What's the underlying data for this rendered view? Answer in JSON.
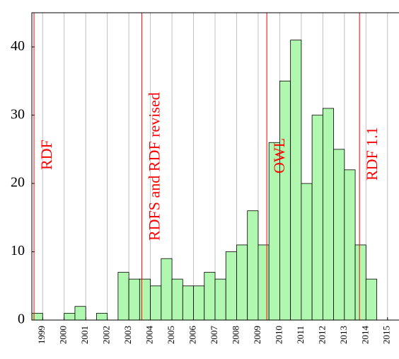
{
  "chart_data": {
    "type": "histogram",
    "bins": [
      1998.5,
      1999,
      1999.5,
      2000,
      2000.5,
      2001,
      2001.5,
      2002,
      2002.5,
      2003,
      2003.5,
      2004,
      2004.5,
      2005,
      2005.5,
      2006,
      2006.5,
      2007,
      2007.5,
      2008,
      2008.5,
      2009,
      2009.5,
      2010,
      2010.5,
      2011,
      2011.5,
      2012,
      2012.5,
      2013,
      2013.5,
      2014,
      2014.5
    ],
    "counts": [
      1,
      0,
      0,
      1,
      2,
      0,
      1,
      0,
      7,
      6,
      6,
      5,
      9,
      6,
      5,
      5,
      7,
      6,
      10,
      11,
      16,
      11,
      26,
      35,
      41,
      20,
      30,
      31,
      25,
      22,
      11,
      6
    ],
    "color": "#b0f8b0",
    "xlim": [
      1998.5,
      2015.5
    ],
    "xticks": [
      1999,
      2000,
      2001,
      2002,
      2003,
      2004,
      2005,
      2006,
      2007,
      2008,
      2009,
      2010,
      2011,
      2012,
      2013,
      2014,
      2015
    ],
    "ylim": [
      0,
      45
    ],
    "yticks": [
      0,
      10,
      20,
      30,
      40
    ],
    "grid": true,
    "annotations": [
      {
        "text": "RDF",
        "x": 1998.6,
        "color": "#ff0000"
      },
      {
        "text": "RDFS and RDF revised",
        "x": 2003.6,
        "color": "#ff0000"
      },
      {
        "text": "OWL",
        "x": 2009.4,
        "color": "#ff0000"
      },
      {
        "text": "RDF 1.1",
        "x": 2013.7,
        "color": "#ff0000"
      }
    ]
  }
}
